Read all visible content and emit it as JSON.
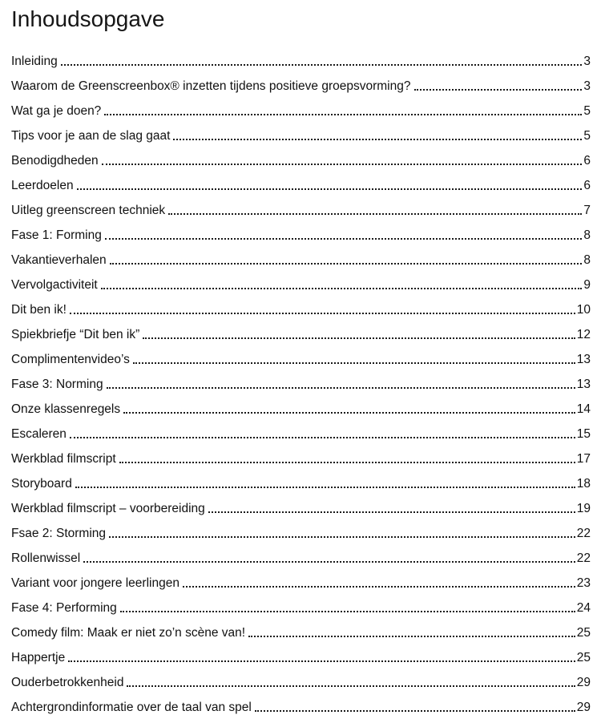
{
  "page": {
    "title": "Inhoudsopgave"
  },
  "toc": {
    "entries": [
      {
        "label": "Inleiding",
        "page": "3"
      },
      {
        "label": "Waarom de Greenscreenbox® inzetten tijdens positieve groepsvorming?",
        "page": "3"
      },
      {
        "label": "Wat ga je doen?",
        "page": "5"
      },
      {
        "label": "Tips voor je aan de slag gaat",
        "page": "5"
      },
      {
        "label": "Benodigdheden",
        "page": "6"
      },
      {
        "label": "Leerdoelen",
        "page": "6"
      },
      {
        "label": "Uitleg greenscreen techniek",
        "page": "7"
      },
      {
        "label": "Fase 1: Forming",
        "page": "8"
      },
      {
        "label": "Vakantieverhalen",
        "page": "8"
      },
      {
        "label": "Vervolgactiviteit",
        "page": "9"
      },
      {
        "label": "Dit ben ik!",
        "page": "10"
      },
      {
        "label": "Spiekbriefje “Dit ben ik”",
        "page": "12"
      },
      {
        "label": "Complimentenvideo’s",
        "page": "13"
      },
      {
        "label": "Fase 3: Norming",
        "page": "13"
      },
      {
        "label": "Onze klassenregels",
        "page": "14"
      },
      {
        "label": "Escaleren",
        "page": "15"
      },
      {
        "label": "Werkblad filmscript",
        "page": "17"
      },
      {
        "label": "Storyboard",
        "page": "18"
      },
      {
        "label": "Werkblad filmscript – voorbereiding",
        "page": "19"
      },
      {
        "label": "Fsae 2: Storming",
        "page": "22"
      },
      {
        "label": "Rollenwissel",
        "page": "22"
      },
      {
        "label": "Variant voor jongere leerlingen",
        "page": "23"
      },
      {
        "label": "Fase 4: Performing",
        "page": "24"
      },
      {
        "label": "Comedy film: Maak er niet zo’n scène van!",
        "page": "25"
      },
      {
        "label": "Happertje",
        "page": "25"
      },
      {
        "label": "Ouderbetrokkenheid",
        "page": "29"
      },
      {
        "label": "Achtergrondinformatie over de taal van spel",
        "page": "29"
      }
    ]
  }
}
